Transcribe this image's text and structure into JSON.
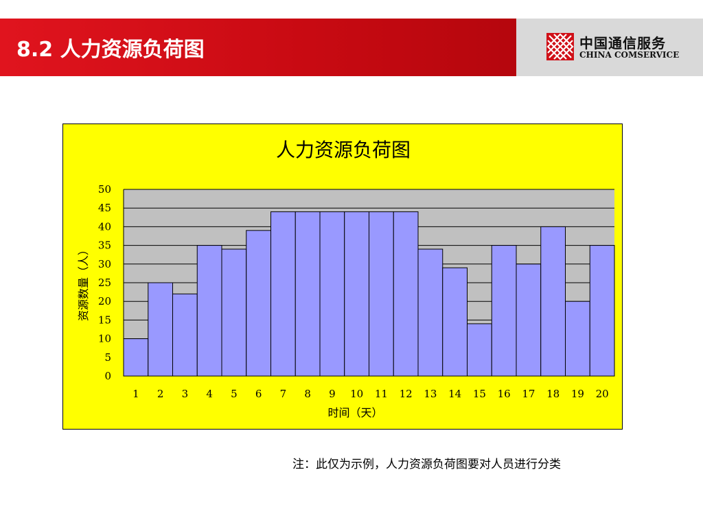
{
  "slide": {
    "title": "8.2 人力资源负荷图"
  },
  "logo": {
    "name_cn": "中国通信服务",
    "name_en": "CHINA COMSERVICE",
    "icon": "lattice-logo-icon"
  },
  "colors": {
    "header_red": "#d01018",
    "header_grey": "#d9d9d9",
    "chart_bg": "#ffff00",
    "plot_bg": "#c0c0c0",
    "bar_fill": "#9999ff"
  },
  "chart_data": {
    "type": "bar",
    "title": "人力资源负荷图",
    "xlabel": "时间（天）",
    "ylabel": "资源数量（人）",
    "categories": [
      "1",
      "2",
      "3",
      "4",
      "5",
      "6",
      "7",
      "8",
      "9",
      "10",
      "11",
      "12",
      "13",
      "14",
      "15",
      "16",
      "17",
      "18",
      "19",
      "20"
    ],
    "values": [
      10,
      25,
      22,
      35,
      34,
      39,
      44,
      44,
      44,
      44,
      44,
      44,
      34,
      29,
      14,
      35,
      30,
      40,
      20,
      35
    ],
    "ylim": [
      0,
      50
    ],
    "yticks": [
      "0",
      "5",
      "10",
      "15",
      "20",
      "25",
      "30",
      "35",
      "40",
      "45",
      "50"
    ],
    "grid": true,
    "legend": "none"
  },
  "note": "注：此仅为示例，人力资源负荷图要对人员进行分类"
}
